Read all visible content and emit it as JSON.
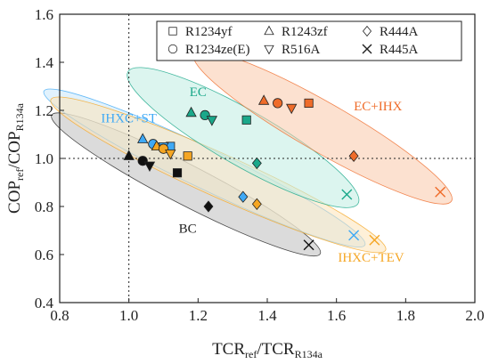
{
  "chart_data": {
    "type": "scatter",
    "xlabel": {
      "main": "TCR",
      "sub1": "ref",
      "sep": "/TCR",
      "sub2": "R134a"
    },
    "ylabel": {
      "main": "COP",
      "sub1": "ref",
      "sep": "/COP",
      "sub2": "R134a"
    },
    "xlim": [
      0.8,
      2.0
    ],
    "ylim": [
      0.4,
      1.6
    ],
    "xticks": [
      "0.8",
      "1.0",
      "1.2",
      "1.4",
      "1.6",
      "1.8",
      "2.0"
    ],
    "yticks": [
      "0.4",
      "0.6",
      "0.8",
      "1.0",
      "1.2",
      "1.4",
      "1.6"
    ],
    "reference_lines": {
      "x": 1.0,
      "y": 1.0,
      "style": "dotted"
    },
    "legend": {
      "position": "top-right",
      "entries": [
        {
          "name": "R1234yf",
          "marker": "square"
        },
        {
          "name": "R1243zf",
          "marker": "triangle-up"
        },
        {
          "name": "R444A",
          "marker": "diamond"
        },
        {
          "name": "R1234ze(E)",
          "marker": "circle"
        },
        {
          "name": "R516A",
          "marker": "triangle-down"
        },
        {
          "name": "R445A",
          "marker": "x"
        }
      ]
    },
    "regions": [
      {
        "label": "BC",
        "color": "#222222",
        "fill": "#bdbdbd",
        "label_pos": [
          1.17,
          0.69
        ]
      },
      {
        "label": "IHXC+ST",
        "color": "#3fa9f5",
        "fill": "#c9e7fb",
        "label_pos": [
          1.0,
          1.15
        ]
      },
      {
        "label": "IHXC+TEV",
        "color": "#f5a623",
        "fill": "#fde3b8",
        "label_pos": [
          1.7,
          0.57
        ]
      },
      {
        "label": "EC",
        "color": "#1aa88a",
        "fill": "#bfece1",
        "label_pos": [
          1.2,
          1.26
        ]
      },
      {
        "label": "EC+IHX",
        "color": "#ef6c2a",
        "fill": "#f9c9a9",
        "label_pos": [
          1.72,
          1.2
        ]
      }
    ],
    "series": [
      {
        "region": "BC",
        "color": "#111111",
        "points": [
          {
            "refrigerant": "R1234yf",
            "x": 1.14,
            "y": 0.94
          },
          {
            "refrigerant": "R1243zf",
            "x": 1.0,
            "y": 1.01
          },
          {
            "refrigerant": "R444A",
            "x": 1.23,
            "y": 0.8
          },
          {
            "refrigerant": "R1234ze(E)",
            "x": 1.04,
            "y": 0.99
          },
          {
            "refrigerant": "R516A",
            "x": 1.06,
            "y": 0.97
          },
          {
            "refrigerant": "R445A",
            "x": 1.52,
            "y": 0.64
          }
        ]
      },
      {
        "region": "IHXC+ST",
        "color": "#3fa9f5",
        "points": [
          {
            "refrigerant": "R1234yf",
            "x": 1.12,
            "y": 1.05
          },
          {
            "refrigerant": "R1243zf",
            "x": 1.04,
            "y": 1.08
          },
          {
            "refrigerant": "R444A",
            "x": 1.33,
            "y": 0.84
          },
          {
            "refrigerant": "R1234ze(E)",
            "x": 1.07,
            "y": 1.06
          },
          {
            "refrigerant": "R516A",
            "x": 1.1,
            "y": 1.05
          },
          {
            "refrigerant": "R445A",
            "x": 1.65,
            "y": 0.68
          }
        ]
      },
      {
        "region": "IHXC+TEV",
        "color": "#f5a623",
        "points": [
          {
            "refrigerant": "R1234yf",
            "x": 1.17,
            "y": 1.01
          },
          {
            "refrigerant": "R1243zf",
            "x": 1.08,
            "y": 1.05
          },
          {
            "refrigerant": "R444A",
            "x": 1.37,
            "y": 0.81
          },
          {
            "refrigerant": "R1234ze(E)",
            "x": 1.1,
            "y": 1.04
          },
          {
            "refrigerant": "R516A",
            "x": 1.12,
            "y": 1.02
          },
          {
            "refrigerant": "R445A",
            "x": 1.71,
            "y": 0.66
          }
        ]
      },
      {
        "region": "EC",
        "color": "#1aa88a",
        "points": [
          {
            "refrigerant": "R1234yf",
            "x": 1.34,
            "y": 1.16
          },
          {
            "refrigerant": "R1243zf",
            "x": 1.18,
            "y": 1.19
          },
          {
            "refrigerant": "R444A",
            "x": 1.37,
            "y": 0.98
          },
          {
            "refrigerant": "R1234ze(E)",
            "x": 1.22,
            "y": 1.18
          },
          {
            "refrigerant": "R516A",
            "x": 1.24,
            "y": 1.16
          },
          {
            "refrigerant": "R445A",
            "x": 1.63,
            "y": 0.85
          }
        ]
      },
      {
        "region": "EC+IHX",
        "color": "#ef6c2a",
        "points": [
          {
            "refrigerant": "R1234yf",
            "x": 1.52,
            "y": 1.23
          },
          {
            "refrigerant": "R1243zf",
            "x": 1.39,
            "y": 1.24
          },
          {
            "refrigerant": "R444A",
            "x": 1.65,
            "y": 1.01
          },
          {
            "refrigerant": "R1234ze(E)",
            "x": 1.43,
            "y": 1.23
          },
          {
            "refrigerant": "R516A",
            "x": 1.47,
            "y": 1.21
          },
          {
            "refrigerant": "R445A",
            "x": 1.9,
            "y": 0.86
          }
        ]
      }
    ]
  }
}
